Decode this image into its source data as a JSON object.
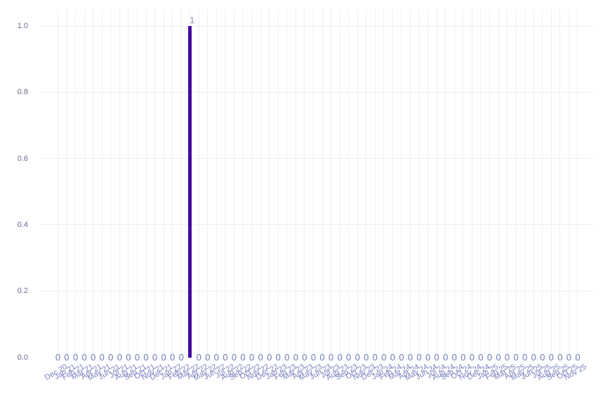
{
  "chart_data": {
    "type": "bar",
    "title": "",
    "xlabel": "",
    "ylabel": "",
    "categories": [
      "Dec 20",
      "Jan 21",
      "Feb 21",
      "Mar 21",
      "Apr 21",
      "May 21",
      "Jun 21",
      "Jul 21",
      "Aug 21",
      "Sep 21",
      "Oct 21",
      "Nov 21",
      "Dec 21",
      "Jan 22",
      "Feb 22",
      "Mar 22",
      "Apr 22",
      "May 22",
      "Jun 22",
      "Jul 22",
      "Aug 22",
      "Sep 22",
      "Oct 22",
      "Nov 22",
      "Dec 22",
      "Jan 23",
      "Feb 23",
      "Mar 23",
      "Apr 23",
      "May 23",
      "Jun 23",
      "Jul 23",
      "Aug 23",
      "Sep 23",
      "Oct 23",
      "Nov 23",
      "Dec 23",
      "Jan 24",
      "Feb 24",
      "Mar 24",
      "Apr 24",
      "May 24",
      "Jun 24",
      "Jul 24",
      "Aug 24",
      "Sep 24",
      "Oct 24",
      "Nov 24",
      "Dec 24",
      "Jan 25",
      "Feb 25",
      "Mar 25",
      "Apr 25",
      "May 25",
      "Jun 25",
      "Jul 25",
      "Aug 25",
      "Sep 25",
      "Oct 25",
      "Nov 25"
    ],
    "values": [
      0,
      0,
      0,
      0,
      0,
      0,
      0,
      0,
      0,
      0,
      0,
      0,
      0,
      0,
      0,
      1,
      0,
      0,
      0,
      0,
      0,
      0,
      0,
      0,
      0,
      0,
      0,
      0,
      0,
      0,
      0,
      0,
      0,
      0,
      0,
      0,
      0,
      0,
      0,
      0,
      0,
      0,
      0,
      0,
      0,
      0,
      0,
      0,
      0,
      0,
      0,
      0,
      0,
      0,
      0,
      0,
      0,
      0,
      0,
      0
    ],
    "yticks": [
      "0.0",
      "0.2",
      "0.4",
      "0.6",
      "0.8",
      "1.0"
    ],
    "ylim": [
      0,
      1.05
    ],
    "grid": true,
    "legend": "none",
    "data_label_position": "outside",
    "colors": {
      "bar": "#430AA0",
      "zero_label": "#6F7AB3",
      "value_label": "#8E93A6",
      "y_tick_label": "#666D93",
      "x_tick_label": "#7880BD",
      "gridline": "#EFEDF8",
      "background": "#FFFFFF"
    }
  }
}
